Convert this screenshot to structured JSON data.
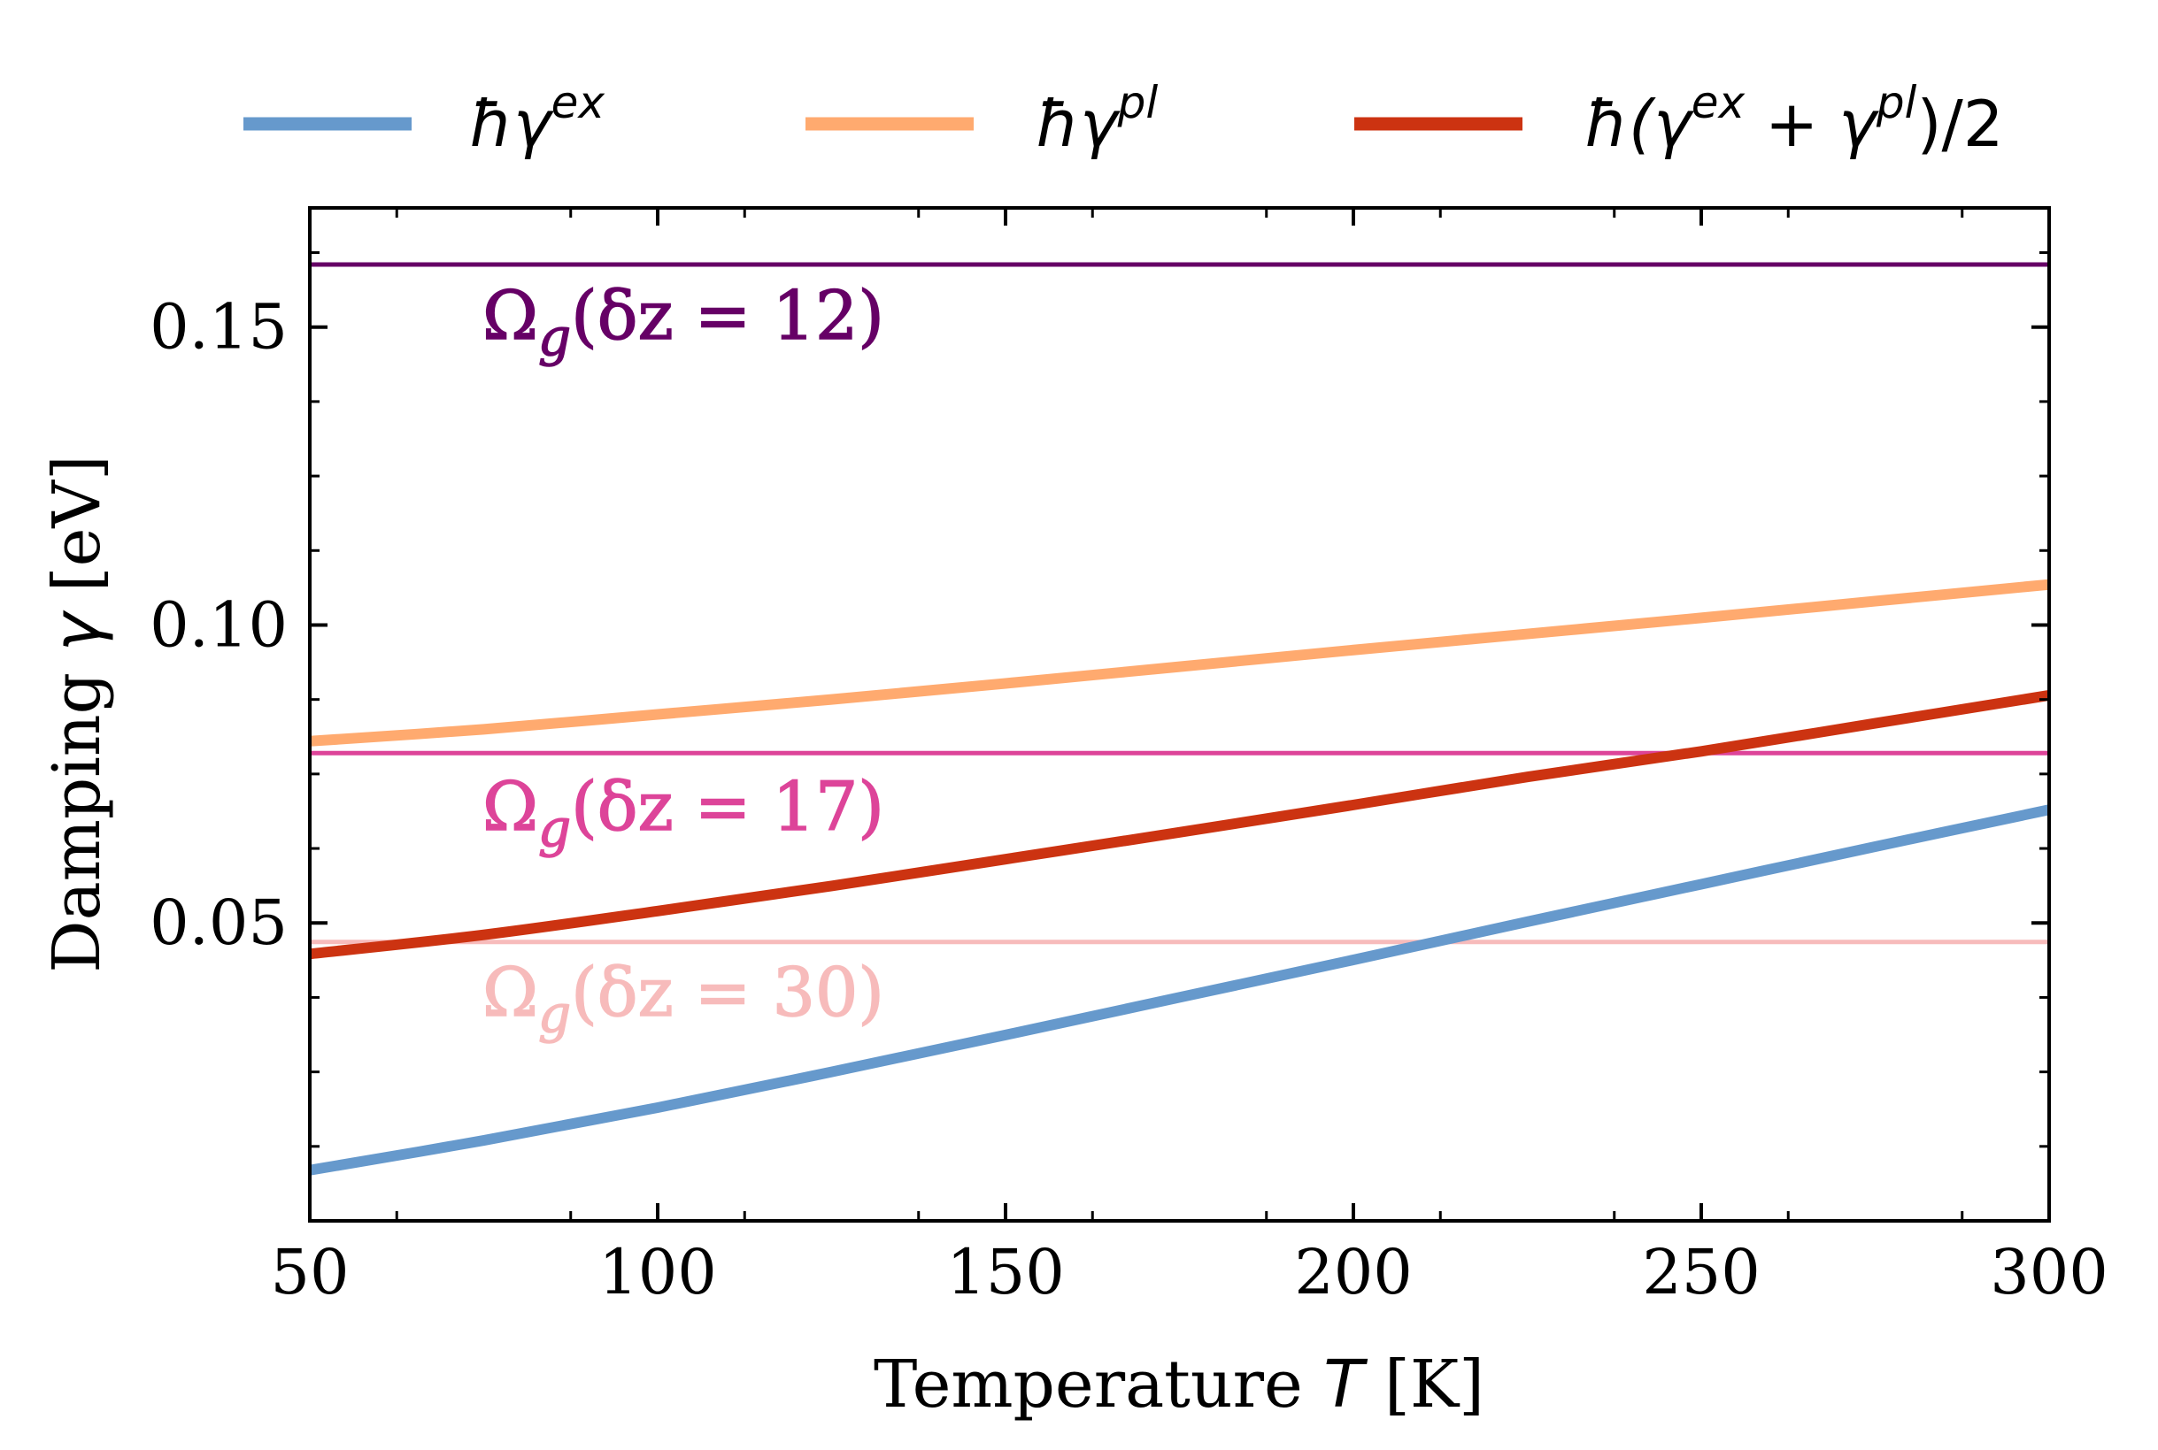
{
  "chart_data": {
    "type": "line",
    "xlabel": "Temperature T [K]",
    "ylabel": "Damping γ [eV]",
    "xlim": [
      50,
      300
    ],
    "ylim": [
      0.0,
      0.17
    ],
    "x_ticks": [
      50,
      100,
      150,
      200,
      250,
      300
    ],
    "y_ticks": [
      0.05,
      0.1,
      0.15
    ],
    "x_tick_labels": [
      "50",
      "100",
      "150",
      "200",
      "250",
      "300"
    ],
    "y_tick_labels": [
      "0.05",
      "0.10",
      "0.15"
    ],
    "grid": false,
    "legend_position": "top, above plot, horizontal",
    "x": [
      50,
      75,
      100,
      125,
      150,
      175,
      200,
      225,
      250,
      275,
      300
    ],
    "series": [
      {
        "name": "ħγ^ex",
        "color": "#6699cc",
        "values": [
          0.0085,
          0.0135,
          0.019,
          0.025,
          0.0312,
          0.0375,
          0.0438,
          0.0502,
          0.0565,
          0.0628,
          0.069
        ]
      },
      {
        "name": "ħγ^pl",
        "color": "#ffaa6f",
        "values": [
          0.0805,
          0.0825,
          0.085,
          0.0875,
          0.0902,
          0.093,
          0.0958,
          0.0985,
          0.1012,
          0.104,
          0.1068
        ]
      },
      {
        "name": "ħ(γ^ex + γ^pl)/2",
        "color": "#cc3311",
        "values": [
          0.0448,
          0.048,
          0.052,
          0.0562,
          0.0607,
          0.0652,
          0.0698,
          0.0745,
          0.0788,
          0.0835,
          0.0882
        ]
      }
    ],
    "hlines": [
      {
        "label": "Ω_g(δz = 12)",
        "y": 0.1605,
        "color": "#660066"
      },
      {
        "label": "Ω_g(δz = 17)",
        "y": 0.0785,
        "color": "#dd4499"
      },
      {
        "label": "Ω_g(δz = 30)",
        "y": 0.0468,
        "color": "#f7bbbb"
      }
    ]
  },
  "legend": {
    "items": [
      {
        "base": "ħγ",
        "sup": "ex",
        "tail": ""
      },
      {
        "base": "ħγ",
        "sup": "pl",
        "tail": ""
      },
      {
        "base": "ħ(γ",
        "sup": "ex",
        "mid": " + γ",
        "sup2": "pl",
        "tail": ")/2"
      }
    ]
  },
  "axis_labels": {
    "x_text": "Temperature ",
    "x_var": "T",
    "x_unit": " [K]",
    "y_text": "Damping ",
    "y_var": "γ",
    "y_unit": " [eV]"
  },
  "annotations": [
    {
      "prefix": "Ω",
      "sub": "g",
      "body": "(δz = 12)"
    },
    {
      "prefix": "Ω",
      "sub": "g",
      "body": "(δz = 17)"
    },
    {
      "prefix": "Ω",
      "sub": "g",
      "body": "(δz = 30)"
    }
  ]
}
